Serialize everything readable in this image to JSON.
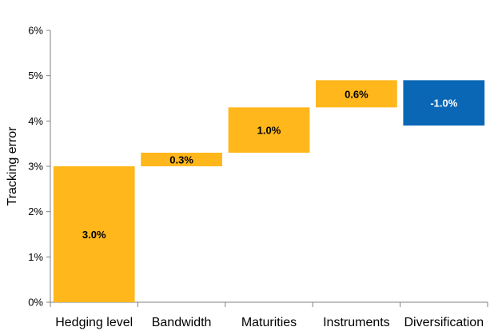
{
  "chart_data": {
    "type": "bar",
    "subtype": "waterfall",
    "ylabel": "Tracking error",
    "xlabel": "",
    "ylim": [
      0,
      6
    ],
    "yticks": [
      "0%",
      "1%",
      "2%",
      "3%",
      "4%",
      "5%",
      "6%"
    ],
    "grid": false,
    "legend": "none",
    "categories": [
      "Hedging level",
      "Bandwidth",
      "Maturities",
      "Instruments",
      "Diversification"
    ],
    "values": [
      3.0,
      0.3,
      1.0,
      0.6,
      -1.0
    ],
    "data_labels": [
      "3.0%",
      "0.3%",
      "1.0%",
      "0.6%",
      "-1.0%"
    ],
    "colors": {
      "increase": "#FFB71B",
      "decrease": "#0A67B5",
      "increase_label": "#000000",
      "decrease_label": "#FFFFFF",
      "axis": "#808080"
    }
  }
}
